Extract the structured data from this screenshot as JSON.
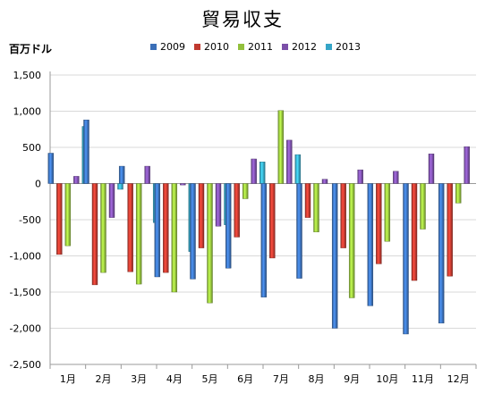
{
  "chart_data": {
    "type": "bar",
    "title": "貿易収支",
    "ylabel": "百万ドル",
    "categories": [
      "1月",
      "2月",
      "3月",
      "4月",
      "5月",
      "6月",
      "7月",
      "8月",
      "9月",
      "10月",
      "11月",
      "12月"
    ],
    "ylim": [
      -2500,
      1500
    ],
    "yticks": [
      "1,500",
      "1,000",
      "500",
      "0",
      "-500",
      "-1,000",
      "-1,500",
      "-2,000",
      "-2,500"
    ],
    "ytick_values": [
      1500,
      1000,
      500,
      0,
      -500,
      -1000,
      -1500,
      -2000,
      -2500
    ],
    "grid": "horizontal",
    "legend_position": "top",
    "series": [
      {
        "name": "2009",
        "color": "#3a6fb8",
        "values": [
          420,
          880,
          240,
          -1290,
          -1320,
          -1170,
          -1570,
          -1310,
          -2000,
          -1690,
          -2080,
          -1930
        ]
      },
      {
        "name": "2010",
        "color": "#c0392f",
        "values": [
          -980,
          -1400,
          -1220,
          -1230,
          -890,
          -740,
          -1030,
          -470,
          -890,
          -1110,
          -1340,
          -1280
        ]
      },
      {
        "name": "2011",
        "color": "#92c03c",
        "values": [
          -860,
          -1230,
          -1390,
          -1500,
          -1650,
          -210,
          1010,
          -670,
          -1580,
          -800,
          -630,
          -270
        ]
      },
      {
        "name": "2012",
        "color": "#7b4fa8",
        "values": [
          100,
          -470,
          240,
          -20,
          -590,
          340,
          600,
          60,
          190,
          170,
          410,
          510
        ]
      },
      {
        "name": "2013",
        "color": "#35a5c7",
        "values": [
          790,
          -80,
          -540,
          -940,
          -570,
          300,
          400,
          null,
          null,
          null,
          null,
          null
        ]
      }
    ]
  }
}
